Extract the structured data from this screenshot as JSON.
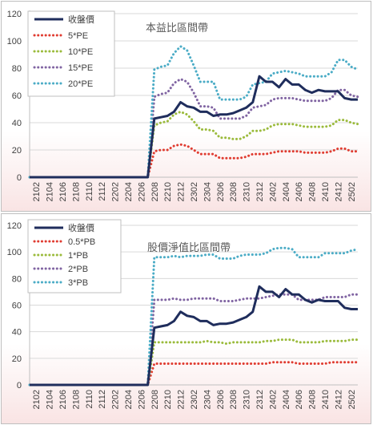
{
  "chart_data": [
    {
      "type": "line",
      "title": "本益比區間帶",
      "xlabel": "",
      "ylabel": "",
      "ylim": [
        0,
        120
      ],
      "yticks": [
        0,
        20,
        40,
        60,
        80,
        100,
        120
      ],
      "x_tick_labels": [
        "2102",
        "2104",
        "2106",
        "2108",
        "2110",
        "2112",
        "2202",
        "2204",
        "2206",
        "2208",
        "2210",
        "2212",
        "2302",
        "2304",
        "2306",
        "2308",
        "2310",
        "2312",
        "2402",
        "2404",
        "2406",
        "2408",
        "2410",
        "2412",
        "2502"
      ],
      "x": [
        "2101",
        "2102",
        "2103",
        "2104",
        "2105",
        "2106",
        "2107",
        "2108",
        "2109",
        "2110",
        "2111",
        "2112",
        "2201",
        "2202",
        "2203",
        "2204",
        "2205",
        "2206",
        "2207",
        "2208",
        "2209",
        "2210",
        "2211",
        "2212",
        "2301",
        "2302",
        "2303",
        "2304",
        "2305",
        "2306",
        "2307",
        "2308",
        "2309",
        "2310",
        "2311",
        "2312",
        "2401",
        "2402",
        "2403",
        "2404",
        "2405",
        "2406",
        "2407",
        "2408",
        "2409",
        "2410",
        "2411",
        "2412",
        "2501",
        "2502",
        "2503"
      ],
      "legend_position": "top-left",
      "grid": "horizontal",
      "series": [
        {
          "name": "收盤價",
          "color": "#1f2d5c",
          "style": "solid",
          "values": [
            0,
            0,
            0,
            0,
            0,
            0,
            0,
            0,
            0,
            0,
            0,
            0,
            0,
            0,
            0,
            0,
            0,
            0,
            0,
            43,
            44,
            45,
            48,
            55,
            52,
            51,
            48,
            48,
            45,
            46,
            46,
            47,
            49,
            51,
            55,
            74,
            70,
            70,
            66,
            72,
            68,
            68,
            64,
            62,
            64,
            63,
            63,
            63,
            58,
            57,
            57
          ]
        },
        {
          "name": "5*PE",
          "color": "#e03c31",
          "style": "dotted",
          "values": [
            0,
            0,
            0,
            0,
            0,
            0,
            0,
            0,
            0,
            0,
            0,
            0,
            0,
            0,
            0,
            0,
            0,
            0,
            0,
            19,
            20,
            20,
            23,
            24,
            23,
            20,
            17,
            17,
            17,
            14,
            14,
            14,
            14,
            15,
            17,
            17,
            17,
            18,
            19,
            19,
            19,
            19,
            18,
            18,
            18,
            18,
            19,
            21,
            21,
            19,
            19
          ]
        },
        {
          "name": "10*PE",
          "color": "#9bbb3c",
          "style": "dotted",
          "values": [
            0,
            0,
            0,
            0,
            0,
            0,
            0,
            0,
            0,
            0,
            0,
            0,
            0,
            0,
            0,
            0,
            0,
            0,
            0,
            38,
            40,
            41,
            46,
            48,
            46,
            41,
            35,
            35,
            34,
            29,
            29,
            28,
            28,
            30,
            34,
            34,
            35,
            38,
            39,
            39,
            39,
            38,
            37,
            37,
            37,
            37,
            38,
            42,
            42,
            40,
            39
          ]
        },
        {
          "name": "15*PE",
          "color": "#8064a2",
          "style": "dotted",
          "values": [
            0,
            0,
            0,
            0,
            0,
            0,
            0,
            0,
            0,
            0,
            0,
            0,
            0,
            0,
            0,
            0,
            0,
            0,
            0,
            59,
            61,
            62,
            69,
            72,
            70,
            62,
            52,
            52,
            51,
            43,
            43,
            43,
            43,
            45,
            51,
            52,
            53,
            57,
            58,
            58,
            58,
            57,
            56,
            56,
            56,
            56,
            58,
            64,
            64,
            60,
            59
          ]
        },
        {
          "name": "20*PE",
          "color": "#4bacc6",
          "style": "dotted",
          "values": [
            0,
            0,
            0,
            0,
            0,
            0,
            0,
            0,
            0,
            0,
            0,
            0,
            0,
            0,
            0,
            0,
            0,
            0,
            0,
            79,
            81,
            82,
            91,
            96,
            93,
            82,
            70,
            70,
            70,
            57,
            57,
            57,
            57,
            59,
            68,
            69,
            70,
            76,
            77,
            78,
            77,
            76,
            74,
            74,
            74,
            74,
            77,
            86,
            86,
            81,
            79
          ]
        }
      ]
    },
    {
      "type": "line",
      "title": "股價淨值比區間帶",
      "xlabel": "",
      "ylabel": "",
      "ylim": [
        0,
        120
      ],
      "yticks": [
        0,
        20,
        40,
        60,
        80,
        100,
        120
      ],
      "x_tick_labels": [
        "2102",
        "2104",
        "2106",
        "2108",
        "2110",
        "2112",
        "2202",
        "2204",
        "2206",
        "2208",
        "2210",
        "2212",
        "2302",
        "2304",
        "2306",
        "2308",
        "2310",
        "2312",
        "2402",
        "2404",
        "2406",
        "2408",
        "2410",
        "2412",
        "2502"
      ],
      "x": [
        "2101",
        "2102",
        "2103",
        "2104",
        "2105",
        "2106",
        "2107",
        "2108",
        "2109",
        "2110",
        "2111",
        "2112",
        "2201",
        "2202",
        "2203",
        "2204",
        "2205",
        "2206",
        "2207",
        "2208",
        "2209",
        "2210",
        "2211",
        "2212",
        "2301",
        "2302",
        "2303",
        "2304",
        "2305",
        "2306",
        "2307",
        "2308",
        "2309",
        "2310",
        "2311",
        "2312",
        "2401",
        "2402",
        "2403",
        "2404",
        "2405",
        "2406",
        "2407",
        "2408",
        "2409",
        "2410",
        "2411",
        "2412",
        "2501",
        "2502",
        "2503"
      ],
      "legend_position": "top-left",
      "grid": "horizontal",
      "series": [
        {
          "name": "收盤價",
          "color": "#1f2d5c",
          "style": "solid",
          "values": [
            0,
            0,
            0,
            0,
            0,
            0,
            0,
            0,
            0,
            0,
            0,
            0,
            0,
            0,
            0,
            0,
            0,
            0,
            0,
            43,
            44,
            45,
            48,
            55,
            52,
            51,
            48,
            48,
            45,
            46,
            46,
            47,
            49,
            51,
            55,
            74,
            70,
            70,
            66,
            72,
            68,
            68,
            64,
            62,
            64,
            63,
            63,
            63,
            58,
            57,
            57
          ]
        },
        {
          "name": "0.5*PB",
          "color": "#e03c31",
          "style": "dotted",
          "values": [
            0,
            0,
            0,
            0,
            0,
            0,
            0,
            0,
            0,
            0,
            0,
            0,
            0,
            0,
            0,
            0,
            0,
            0,
            0,
            16,
            16,
            16,
            16,
            16,
            16,
            16,
            16,
            16,
            16,
            16,
            16,
            16,
            16,
            16,
            16,
            16,
            16,
            17,
            17,
            17,
            17,
            16,
            16,
            16,
            16,
            16,
            17,
            17,
            17,
            17,
            17
          ]
        },
        {
          "name": "1*PB",
          "color": "#9bbb3c",
          "style": "dotted",
          "values": [
            0,
            0,
            0,
            0,
            0,
            0,
            0,
            0,
            0,
            0,
            0,
            0,
            0,
            0,
            0,
            0,
            0,
            0,
            0,
            32,
            32,
            32,
            32,
            32,
            32,
            32,
            32,
            33,
            32,
            32,
            31,
            32,
            32,
            32,
            32,
            32,
            33,
            33,
            34,
            34,
            34,
            32,
            32,
            32,
            32,
            33,
            33,
            33,
            33,
            34,
            34
          ]
        },
        {
          "name": "2*PB",
          "color": "#8064a2",
          "style": "dotted",
          "values": [
            0,
            0,
            0,
            0,
            0,
            0,
            0,
            0,
            0,
            0,
            0,
            0,
            0,
            0,
            0,
            0,
            0,
            0,
            0,
            64,
            64,
            64,
            65,
            64,
            64,
            65,
            65,
            65,
            65,
            63,
            63,
            63,
            64,
            65,
            65,
            65,
            66,
            67,
            68,
            68,
            68,
            64,
            64,
            64,
            64,
            66,
            66,
            66,
            66,
            68,
            68
          ]
        },
        {
          "name": "3*PB",
          "color": "#4bacc6",
          "style": "dotted",
          "values": [
            0,
            0,
            0,
            0,
            0,
            0,
            0,
            0,
            0,
            0,
            0,
            0,
            0,
            0,
            0,
            0,
            0,
            0,
            0,
            96,
            96,
            96,
            97,
            96,
            97,
            97,
            97,
            98,
            98,
            95,
            95,
            95,
            97,
            98,
            98,
            98,
            99,
            102,
            103,
            103,
            102,
            96,
            96,
            96,
            96,
            99,
            99,
            99,
            99,
            101,
            102
          ]
        }
      ]
    }
  ]
}
